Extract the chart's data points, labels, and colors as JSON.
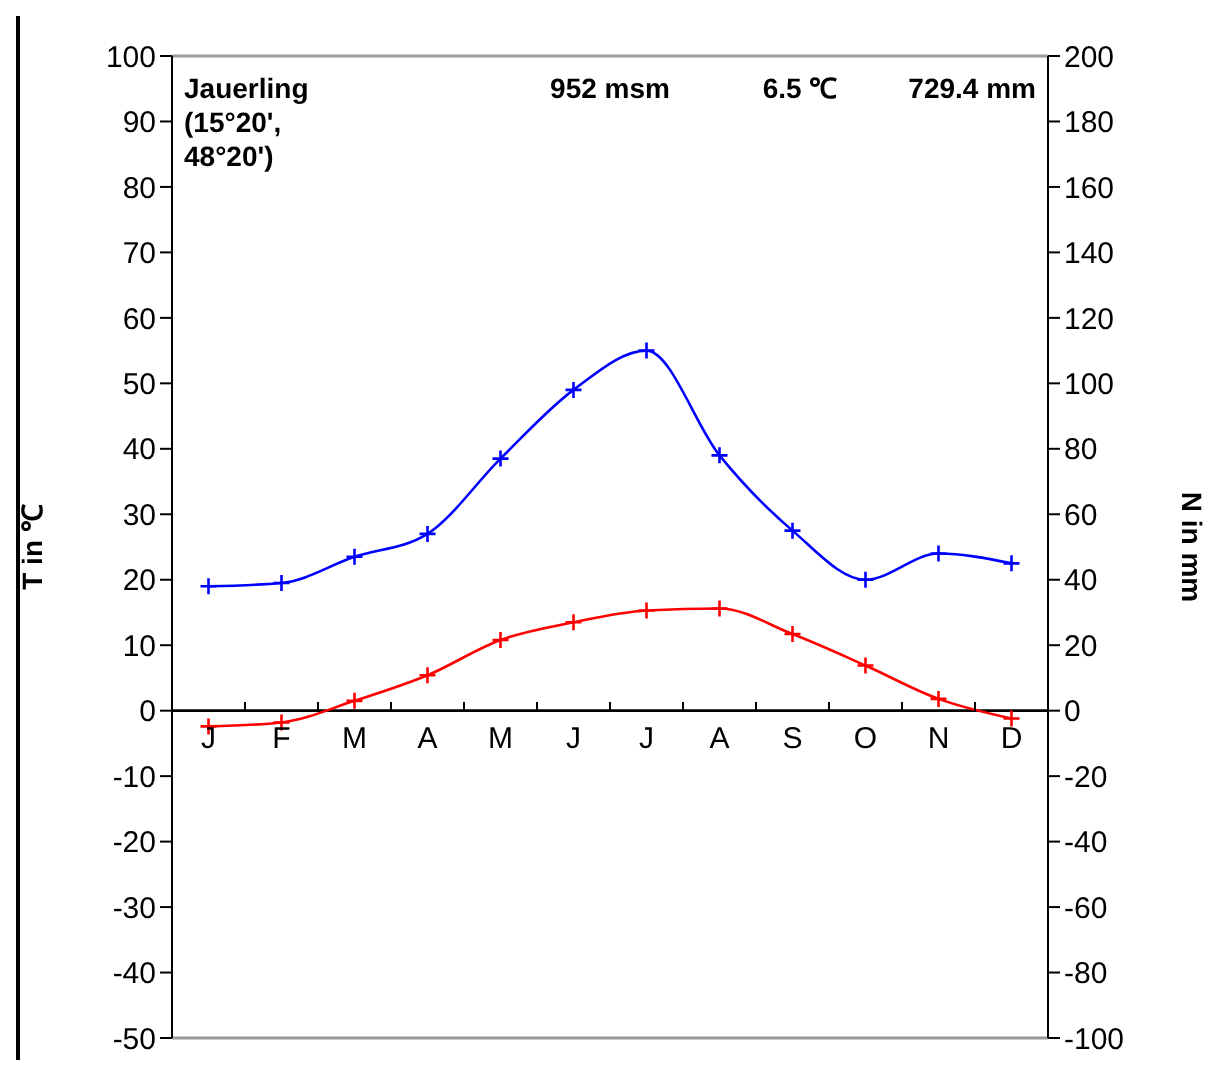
{
  "chart_data": {
    "type": "line",
    "categories": [
      "J",
      "F",
      "M",
      "A",
      "M",
      "J",
      "J",
      "A",
      "S",
      "O",
      "N",
      "D"
    ],
    "series": [
      {
        "color": "#0000ff",
        "axis": "y2",
        "values": [
          38,
          39,
          47,
          54,
          77,
          98,
          110,
          78,
          55,
          40,
          48,
          45
        ]
      },
      {
        "color": "#ff0000",
        "values": [
          -2.4,
          -1.8,
          1.5,
          5.4,
          10.8,
          13.5,
          15.3,
          15.6,
          11.7,
          6.9,
          1.8,
          -1.2
        ]
      }
    ],
    "ylabel": "T in ℃",
    "y2label": "N in mm",
    "ylim": [
      -50,
      100
    ],
    "yticks": [
      -50,
      -40,
      -30,
      -20,
      -10,
      0,
      10,
      20,
      30,
      40,
      50,
      60,
      70,
      80,
      90,
      100
    ],
    "y2lim": [
      -100,
      200
    ],
    "y2ticks": [
      -100,
      -80,
      -60,
      -40,
      -20,
      0,
      20,
      40,
      60,
      80,
      100,
      120,
      140,
      160,
      180,
      200
    ],
    "annotations": [
      "Jauerling (15°20', 48°20')",
      "952 msm",
      "6.5 ℃",
      "729.4 mm"
    ],
    "marker": "cross",
    "line_style": "solid",
    "grid": false,
    "legend": false
  }
}
